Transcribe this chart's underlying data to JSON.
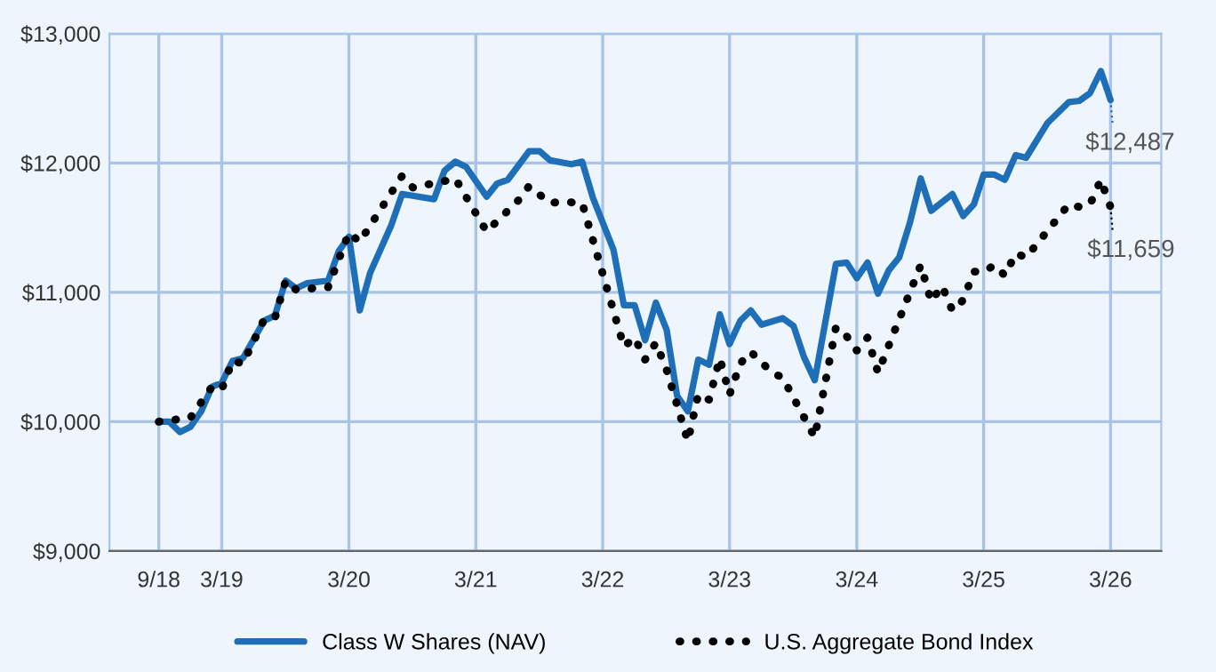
{
  "chart_data": {
    "type": "line",
    "xlim": [
      "2018-04-12",
      "2026-07-25"
    ],
    "xticks": [
      {
        "value": "2018-09",
        "label": "9/18"
      },
      {
        "value": "2019-03",
        "label": "3/19"
      },
      {
        "value": "2020-03",
        "label": "3/20"
      },
      {
        "value": "2021-03",
        "label": "3/21"
      },
      {
        "value": "2022-03",
        "label": "3/22"
      },
      {
        "value": "2023-03",
        "label": "3/23"
      },
      {
        "value": "2024-03",
        "label": "3/24"
      },
      {
        "value": "2025-03",
        "label": "3/25"
      },
      {
        "value": "2026-03",
        "label": "3/26"
      }
    ],
    "ylim": [
      9000,
      13000
    ],
    "yticks": [
      {
        "value": 9000,
        "label": "$9,000"
      },
      {
        "value": 10000,
        "label": "$10,000"
      },
      {
        "value": 11000,
        "label": "$11,000"
      },
      {
        "value": 12000,
        "label": "$12,000"
      },
      {
        "value": 13000,
        "label": "$13,000"
      }
    ],
    "grid": true,
    "legend": "bottom",
    "series": [
      {
        "name": "Class W Shares (NAV)",
        "color": "#1f6fb8",
        "line_style": "solid",
        "x": [
          "2018-09",
          "2018-10",
          "2018-11",
          "2018-12",
          "2019-01",
          "2019-02",
          "2019-03",
          "2019-04",
          "2019-05",
          "2019-07",
          "2019-08",
          "2019-09",
          "2019-10",
          "2019-11",
          "2020-01",
          "2020-02",
          "2020-03",
          "2020-04",
          "2020-05",
          "2020-07",
          "2020-08",
          "2020-11",
          "2020-12",
          "2021-01",
          "2021-02",
          "2021-04",
          "2021-05",
          "2021-06",
          "2021-08",
          "2021-09",
          "2021-10",
          "2021-12",
          "2022-01",
          "2022-02",
          "2022-03",
          "2022-04",
          "2022-05",
          "2022-06",
          "2022-07",
          "2022-08",
          "2022-09",
          "2022-10",
          "2022-11",
          "2022-12",
          "2023-01",
          "2023-02",
          "2023-03",
          "2023-04",
          "2023-05",
          "2023-06",
          "2023-08",
          "2023-09",
          "2023-10",
          "2023-11",
          "2024-01",
          "2024-02",
          "2024-03",
          "2024-04",
          "2024-05",
          "2024-06",
          "2024-07",
          "2024-08",
          "2024-09",
          "2024-10",
          "2024-12",
          "2025-01",
          "2025-02",
          "2025-03",
          "2025-04",
          "2025-05",
          "2025-06",
          "2025-07",
          "2025-09",
          "2025-11",
          "2025-12",
          "2026-01",
          "2026-02",
          "2026-03"
        ],
        "values": [
          10000,
          10000,
          9920,
          9960,
          10080,
          10270,
          10300,
          10470,
          10490,
          10780,
          10820,
          11090,
          11030,
          11070,
          11090,
          11320,
          11430,
          10860,
          11150,
          11520,
          11760,
          11720,
          11940,
          12010,
          11970,
          11740,
          11840,
          11870,
          12090,
          12090,
          12020,
          11990,
          12010,
          11730,
          11540,
          11330,
          10900,
          10900,
          10630,
          10920,
          10710,
          10200,
          10080,
          10480,
          10440,
          10830,
          10600,
          10780,
          10860,
          10750,
          10800,
          10740,
          10500,
          10320,
          11220,
          11230,
          11110,
          11230,
          10990,
          11170,
          11270,
          11540,
          11880,
          11630,
          11760,
          11590,
          11680,
          11910,
          11910,
          11870,
          12060,
          12040,
          12310,
          12470,
          12480,
          12540,
          12710,
          12487
        ]
      },
      {
        "name": "U.S. Aggregate Bond Index",
        "color": "#000000",
        "line_style": "dotted",
        "x": [
          "2018-09",
          "2018-12",
          "2019-02",
          "2019-03",
          "2019-04",
          "2019-05",
          "2019-07",
          "2019-08",
          "2019-09",
          "2019-10",
          "2020-01",
          "2020-03",
          "2020-04",
          "2020-08",
          "2020-09",
          "2020-12",
          "2021-01",
          "2021-04",
          "2021-07",
          "2021-08",
          "2021-10",
          "2021-11",
          "2022-01",
          "2022-05",
          "2022-06",
          "2022-07",
          "2022-08",
          "2022-09",
          "2022-11",
          "2022-12",
          "2023-01",
          "2023-02",
          "2023-03",
          "2023-04",
          "2023-05",
          "2023-07",
          "2023-08",
          "2023-11",
          "2024-01",
          "2024-02",
          "2024-03",
          "2024-04",
          "2024-05",
          "2024-09",
          "2024-10",
          "2024-11",
          "2024-12",
          "2025-01",
          "2025-02",
          "2025-03",
          "2025-04",
          "2025-05",
          "2025-06",
          "2025-07",
          "2025-11",
          "2025-12",
          "2026-01",
          "2026-02",
          "2026-03"
        ],
        "values": [
          10000,
          10030,
          10270,
          10250,
          10470,
          10450,
          10790,
          10800,
          11090,
          11020,
          11040,
          11460,
          11390,
          11900,
          11810,
          11860,
          11880,
          11470,
          11710,
          11820,
          11690,
          11700,
          11690,
          10580,
          10650,
          10480,
          10610,
          10400,
          9850,
          10210,
          10170,
          10490,
          10210,
          10450,
          10540,
          10380,
          10340,
          9880,
          10730,
          10660,
          10550,
          10650,
          10380,
          11210,
          10930,
          11050,
          10860,
          10940,
          11160,
          11160,
          11210,
          11130,
          11300,
          11270,
          11680,
          11660,
          11680,
          11870,
          11659
        ]
      }
    ],
    "annotations": [
      {
        "text": "$12,487",
        "x": "2026-03",
        "y": 12487
      },
      {
        "text": "$11,659",
        "x": "2026-03",
        "y": 11659
      }
    ]
  }
}
